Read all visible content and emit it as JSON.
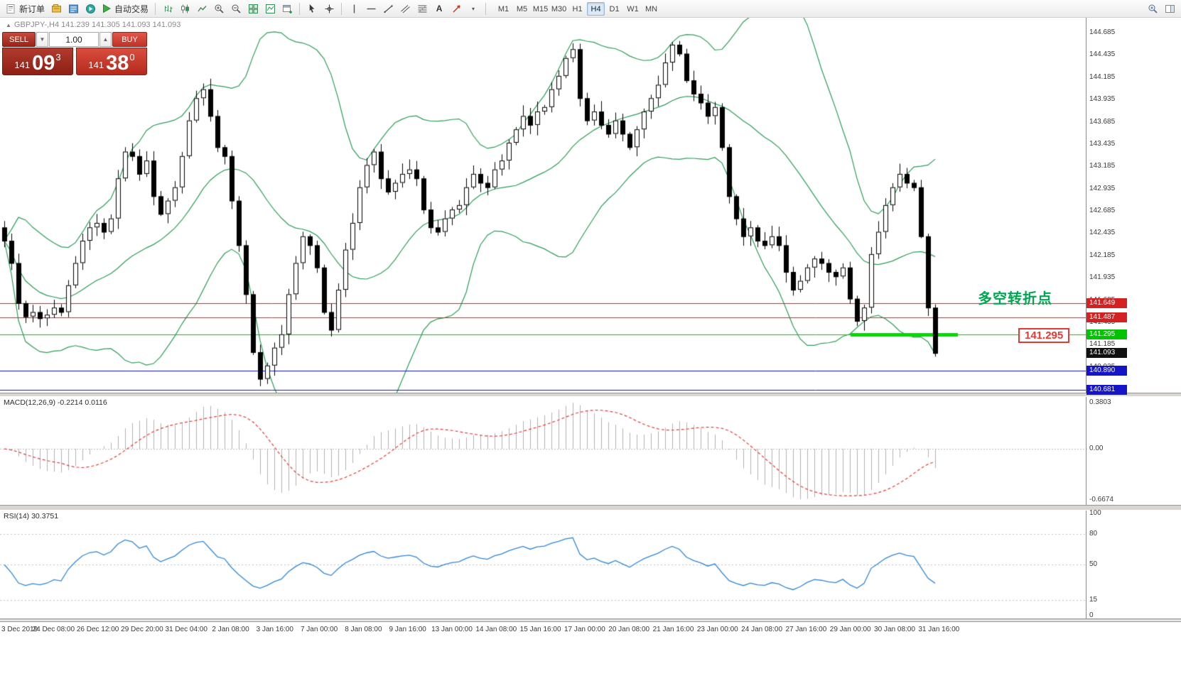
{
  "toolbar": {
    "new_order_label": "新订单",
    "auto_trading_label": "自动交易",
    "timeframes": [
      "M1",
      "M5",
      "M15",
      "M30",
      "H1",
      "H4",
      "D1",
      "W1",
      "MN"
    ],
    "active_timeframe": "H4"
  },
  "icons": {
    "header_triangle": "▲",
    "vol_down": "▼",
    "vol_up": "▲",
    "objects_dropdown": "▾",
    "text_tool": "A"
  },
  "chart": {
    "header_text": "GBPJPY-,H4  141.239 141.305 141.093 141.093",
    "annotation": "多空转折点",
    "floating_label": "141.295",
    "trade_panel": {
      "sell_label": "SELL",
      "buy_label": "BUY",
      "volume": "1.00",
      "sell_price_main": "141",
      "sell_price_big": "09",
      "sell_price_sup": "3",
      "buy_price_main": "141",
      "buy_price_big": "38",
      "buy_price_sup": "0"
    }
  },
  "price_axis_labels": [
    "144.685",
    "144.435",
    "144.185",
    "143.935",
    "143.685",
    "143.435",
    "143.185",
    "142.935",
    "142.685",
    "142.435",
    "142.185",
    "141.935",
    "141.685",
    "141.435",
    "141.185",
    "140.935"
  ],
  "levels": [
    {
      "text": "141.649",
      "price": 141.649,
      "color": "#d42222",
      "type": "resistance",
      "draw_line": true
    },
    {
      "text": "141.487",
      "price": 141.487,
      "color": "#d42222",
      "type": "resistance",
      "draw_line": true
    },
    {
      "text": "141.295",
      "price": 141.295,
      "color": "#00c400",
      "type": "support",
      "draw_line": true
    },
    {
      "text": "141.093",
      "price": 141.093,
      "color": "#111111",
      "type": "current-bid",
      "draw_line": false
    },
    {
      "text": "140.890",
      "price": 140.89,
      "color": "#1414c8",
      "type": "support",
      "draw_line": true
    },
    {
      "text": "140.681",
      "price": 140.681,
      "color": "#1414c8",
      "type": "support",
      "draw_line": true
    }
  ],
  "macd": {
    "label": "MACD(12,26,9) -0.2214 0.0116",
    "scale_max": "0.3803",
    "scale_zero": "0.00",
    "scale_min": "-0.6674"
  },
  "rsi": {
    "label": "RSI(14) 30.3751",
    "levels": [
      {
        "text": "100",
        "value": 100
      },
      {
        "text": "80",
        "value": 80
      },
      {
        "text": "50",
        "value": 50
      },
      {
        "text": "15",
        "value": 15
      },
      {
        "text": "0",
        "value": 0
      }
    ]
  },
  "time_axis_labels": [
    "3 Dec 2019",
    "24 Dec 08:00",
    "26 Dec 12:00",
    "29 Dec 20:00",
    "31 Dec 04:00",
    "2 Jan 08:00",
    "3 Jan 16:00",
    "7 Jan 00:00",
    "8 Jan 08:00",
    "9 Jan 16:00",
    "13 Jan 00:00",
    "14 Jan 08:00",
    "15 Jan 16:00",
    "17 Jan 00:00",
    "20 Jan 08:00",
    "21 Jan 16:00",
    "23 Jan 00:00",
    "24 Jan 08:00",
    "27 Jan 16:00",
    "29 Jan 00:00",
    "30 Jan 08:00",
    "31 Jan 16:00"
  ],
  "chart_data": {
    "type": "candlestick",
    "symbol": "GBPJPY-",
    "timeframe": "H4",
    "open": "141.239",
    "high": "141.305",
    "low": "141.093",
    "close": "141.093",
    "price_range_top": 144.685,
    "price_step": 0.25,
    "bollinger": {
      "period": 20,
      "deviation": 2
    },
    "macd_params": [
      12,
      26,
      9
    ],
    "rsi_period": 14,
    "trend_segment": {
      "price": 141.295,
      "color": "#00dc00"
    },
    "closes": [
      142.35,
      142.1,
      141.65,
      141.5,
      141.55,
      141.48,
      141.52,
      141.6,
      141.55,
      141.85,
      142.1,
      142.35,
      142.5,
      142.55,
      142.45,
      142.6,
      143.05,
      143.35,
      143.3,
      143.1,
      143.25,
      142.85,
      142.65,
      142.8,
      142.95,
      143.3,
      143.7,
      143.95,
      144.05,
      143.75,
      143.4,
      143.3,
      142.8,
      142.3,
      141.75,
      141.1,
      140.8,
      140.95,
      141.15,
      141.3,
      141.75,
      142.1,
      142.4,
      142.3,
      142.05,
      141.55,
      141.35,
      141.8,
      142.25,
      142.55,
      142.95,
      143.2,
      143.35,
      143.05,
      142.9,
      143.0,
      143.1,
      143.15,
      143.05,
      142.7,
      142.5,
      142.45,
      142.6,
      142.7,
      142.75,
      142.95,
      143.1,
      143.0,
      142.95,
      143.15,
      143.25,
      143.45,
      143.6,
      143.75,
      143.65,
      143.8,
      143.85,
      144.05,
      144.2,
      144.4,
      144.5,
      143.95,
      143.7,
      143.8,
      143.65,
      143.55,
      143.7,
      143.55,
      143.4,
      143.6,
      143.8,
      143.95,
      144.1,
      144.35,
      144.55,
      144.45,
      144.15,
      144.0,
      143.9,
      143.75,
      143.85,
      143.4,
      142.85,
      142.6,
      142.4,
      142.5,
      142.35,
      142.3,
      142.4,
      142.3,
      142.0,
      141.8,
      141.9,
      142.05,
      142.15,
      142.1,
      142.0,
      141.95,
      142.05,
      141.7,
      141.45,
      141.6,
      142.2,
      142.45,
      142.75,
      142.95,
      143.1,
      143.0,
      142.95,
      142.4,
      141.6,
      141.09
    ]
  }
}
